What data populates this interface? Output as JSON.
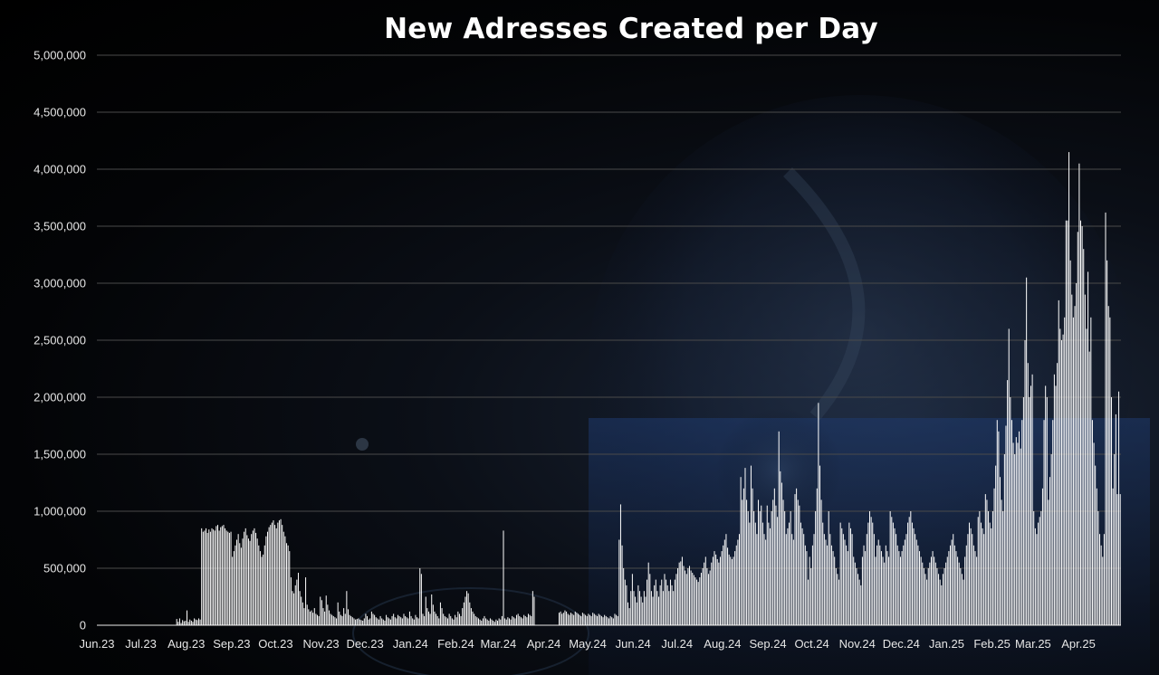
{
  "chart_data": {
    "type": "bar",
    "title": "New Adresses Created per Day",
    "xlabel": "",
    "ylabel": "",
    "ylim": [
      0,
      5000000
    ],
    "y_ticks": [
      0,
      500000,
      1000000,
      1500000,
      2000000,
      2500000,
      3000000,
      3500000,
      4000000,
      4500000,
      5000000
    ],
    "y_tick_labels": [
      "0",
      "500,000",
      "1,000,000",
      "1,500,000",
      "2,000,000",
      "2,500,000",
      "3,000,000",
      "3,500,000",
      "4,000,000",
      "4,500,000",
      "5,000,000"
    ],
    "x_tick_labels": [
      "Jun.23",
      "Jul.23",
      "Aug.23",
      "Sep.23",
      "Oct.23",
      "Nov.23",
      "Dec.23",
      "Jan.24",
      "Feb.24",
      "Mar.24",
      "Apr.24",
      "May.24",
      "Jun.24",
      "Jul.24",
      "Aug.24",
      "Sep.24",
      "Oct.24",
      "Nov.24",
      "Dec.24",
      "Jan.25",
      "Feb.25",
      "Mar.25",
      "Apr.25"
    ],
    "grid": true,
    "bar_color": "#ffffff",
    "series": [
      {
        "values_per_month": [
          [
            0,
            0,
            0,
            0,
            0,
            0,
            0,
            0,
            0,
            0,
            0,
            0,
            0,
            0,
            0,
            0,
            0,
            0,
            0,
            0,
            0,
            0,
            0,
            0,
            0,
            0,
            0,
            0,
            0,
            0
          ],
          [
            0,
            0,
            0,
            0,
            0,
            0,
            0,
            0,
            0,
            0,
            0,
            0,
            0,
            0,
            0,
            0,
            0,
            0,
            0,
            0,
            0,
            0,
            0,
            0,
            55000,
            30000,
            60000,
            20000,
            45000,
            35000,
            40000
          ],
          [
            130000,
            30000,
            50000,
            40000,
            30000,
            60000,
            50000,
            45000,
            60000,
            50000,
            850000,
            820000,
            830000,
            850000,
            810000,
            840000,
            820000,
            850000,
            840000,
            830000,
            870000,
            880000,
            830000,
            860000,
            870000,
            880000,
            850000,
            830000,
            820000,
            810000,
            820000
          ],
          [
            600000,
            650000,
            700000,
            750000,
            800000,
            720000,
            680000,
            760000,
            820000,
            850000,
            790000,
            760000,
            740000,
            800000,
            830000,
            850000,
            810000,
            760000,
            700000,
            650000,
            600000,
            620000,
            700000,
            780000,
            820000,
            860000,
            880000,
            900000,
            920000,
            880000
          ],
          [
            850000,
            900000,
            920000,
            930000,
            880000,
            820000,
            780000,
            720000,
            700000,
            650000,
            420000,
            300000,
            280000,
            350000,
            400000,
            460000,
            300000,
            250000,
            200000,
            150000,
            420000,
            180000,
            140000,
            120000,
            130000,
            110000,
            150000,
            100000,
            90000,
            80000,
            250000
          ],
          [
            220000,
            150000,
            120000,
            260000,
            180000,
            130000,
            100000,
            90000,
            80000,
            70000,
            60000,
            200000,
            120000,
            90000,
            80000,
            150000,
            100000,
            300000,
            140000,
            90000,
            80000,
            70000,
            60000,
            50000,
            55000,
            60000,
            50000,
            45000,
            40000,
            60000
          ],
          [
            100000,
            80000,
            50000,
            60000,
            120000,
            100000,
            90000,
            70000,
            60000,
            50000,
            80000,
            60000,
            50000,
            40000,
            90000,
            70000,
            60000,
            50000,
            80000,
            100000,
            70000,
            60000,
            90000,
            80000,
            70000,
            60000,
            100000,
            80000,
            70000,
            60000,
            120000
          ],
          [
            80000,
            60000,
            50000,
            90000,
            70000,
            60000,
            500000,
            450000,
            100000,
            80000,
            250000,
            150000,
            120000,
            100000,
            270000,
            180000,
            120000,
            100000,
            80000,
            60000,
            200000,
            150000,
            100000,
            80000,
            70000,
            60000,
            100000,
            80000,
            60000,
            50000,
            90000
          ],
          [
            70000,
            120000,
            100000,
            80000,
            150000,
            200000,
            250000,
            300000,
            280000,
            200000,
            150000,
            120000,
            100000,
            80000,
            70000,
            60000,
            50000,
            40000,
            60000,
            80000,
            60000,
            50000,
            40000,
            60000,
            50000,
            40000,
            30000,
            50000,
            40000
          ],
          [
            60000,
            50000,
            80000,
            830000,
            60000,
            50000,
            70000,
            60000,
            50000,
            80000,
            70000,
            60000,
            90000,
            100000,
            80000,
            70000,
            60000,
            90000,
            80000,
            70000,
            100000,
            90000,
            80000,
            300000,
            250000,
            0,
            0,
            0,
            0,
            0,
            0
          ],
          [
            0,
            0,
            0,
            0,
            0,
            0,
            0,
            0,
            0,
            0,
            110000,
            120000,
            100000,
            110000,
            130000,
            120000,
            100000,
            90000,
            110000,
            100000,
            90000,
            120000,
            110000,
            100000,
            90000,
            80000,
            110000,
            100000,
            90000,
            80000
          ],
          [
            100000,
            90000,
            80000,
            110000,
            100000,
            90000,
            80000,
            100000,
            90000,
            80000,
            70000,
            90000,
            80000,
            70000,
            60000,
            80000,
            70000,
            60000,
            100000,
            90000,
            80000,
            750000,
            1060000,
            700000,
            500000,
            400000,
            350000,
            200000,
            150000,
            300000,
            450000
          ],
          [
            300000,
            250000,
            200000,
            350000,
            300000,
            250000,
            200000,
            300000,
            250000,
            400000,
            550000,
            450000,
            300000,
            250000,
            350000,
            400000,
            300000,
            250000,
            350000,
            400000,
            300000,
            450000,
            400000,
            350000,
            300000,
            400000,
            350000,
            300000,
            400000,
            450000
          ],
          [
            500000,
            550000,
            560000,
            600000,
            520000,
            480000,
            450000,
            500000,
            520000,
            480000,
            460000,
            440000,
            420000,
            400000,
            380000,
            420000,
            460000,
            500000,
            550000,
            600000,
            500000,
            450000,
            480000,
            550000,
            600000,
            650000,
            620000,
            580000,
            550000,
            600000,
            650000
          ],
          [
            700000,
            750000,
            800000,
            680000,
            620000,
            600000,
            580000,
            600000,
            650000,
            700000,
            750000,
            800000,
            1300000,
            1100000,
            1200000,
            1380000,
            1100000,
            1000000,
            900000,
            1400000,
            1200000,
            1000000,
            900000,
            800000,
            1100000,
            1000000,
            1050000,
            900000,
            800000,
            750000,
            1050000
          ],
          [
            900000,
            850000,
            1000000,
            1100000,
            1200000,
            1050000,
            950000,
            1700000,
            1350000,
            1250000,
            1100000,
            1000000,
            800000,
            850000,
            900000,
            1000000,
            800000,
            750000,
            1150000,
            1200000,
            1100000,
            1050000,
            900000,
            850000,
            800000,
            700000,
            650000,
            400000,
            600000,
            500000
          ],
          [
            700000,
            800000,
            1000000,
            1200000,
            1950000,
            1400000,
            1100000,
            900000,
            800000,
            750000,
            700000,
            1000000,
            800000,
            700000,
            650000,
            600000,
            500000,
            450000,
            400000,
            900000,
            850000,
            800000,
            750000,
            700000,
            650000,
            900000,
            850000,
            800000,
            600000,
            550000,
            500000
          ],
          [
            450000,
            400000,
            350000,
            600000,
            700000,
            650000,
            800000,
            900000,
            1000000,
            950000,
            900000,
            800000,
            600000,
            700000,
            750000,
            700000,
            650000,
            600000,
            550000,
            700000,
            650000,
            600000,
            1000000,
            950000,
            900000,
            850000,
            800000,
            700000,
            650000,
            600000
          ],
          [
            650000,
            700000,
            750000,
            800000,
            900000,
            950000,
            1000000,
            900000,
            850000,
            800000,
            750000,
            700000,
            650000,
            600000,
            550000,
            500000,
            450000,
            400000,
            500000,
            550000,
            600000,
            650000,
            600000,
            550000,
            500000,
            450000,
            400000,
            350000,
            450000,
            500000,
            550000
          ],
          [
            600000,
            650000,
            700000,
            750000,
            800000,
            700000,
            650000,
            600000,
            550000,
            500000,
            450000,
            400000,
            600000,
            700000,
            800000,
            900000,
            850000,
            800000,
            700000,
            650000,
            600000,
            950000,
            1000000,
            900000,
            850000,
            800000,
            1150000,
            1100000,
            1000000,
            900000,
            850000
          ],
          [
            1000000,
            1200000,
            1400000,
            1800000,
            1700000,
            1300000,
            1100000,
            1000000,
            1500000,
            1750000,
            2150000,
            2600000,
            2000000,
            1800000,
            1600000,
            1500000,
            1650000,
            1600000,
            1700000,
            1550000,
            1800000,
            2000000,
            2500000,
            3050000,
            2300000,
            2000000,
            2100000,
            2200000
          ],
          [
            1000000,
            850000,
            800000,
            900000,
            950000,
            1000000,
            1200000,
            1800000,
            2100000,
            2000000,
            1100000,
            1300000,
            1500000,
            1800000,
            2200000,
            2100000,
            2300000,
            2850000,
            2600000,
            2500000,
            2550000,
            2700000,
            3550000,
            3550000,
            4150000,
            3200000,
            2900000,
            2700000,
            2800000,
            3000000,
            3450000
          ],
          [
            4050000,
            3550000,
            3500000,
            3300000,
            2900000,
            2600000,
            3100000,
            2400000,
            2700000,
            1800000,
            1600000,
            1400000,
            1200000,
            1000000,
            800000,
            700000,
            600000,
            800000,
            3620000,
            3200000,
            2800000,
            2700000,
            2000000,
            1200000,
            1500000,
            1850000,
            1150000,
            2050000,
            1150000
          ]
        ]
      }
    ]
  }
}
